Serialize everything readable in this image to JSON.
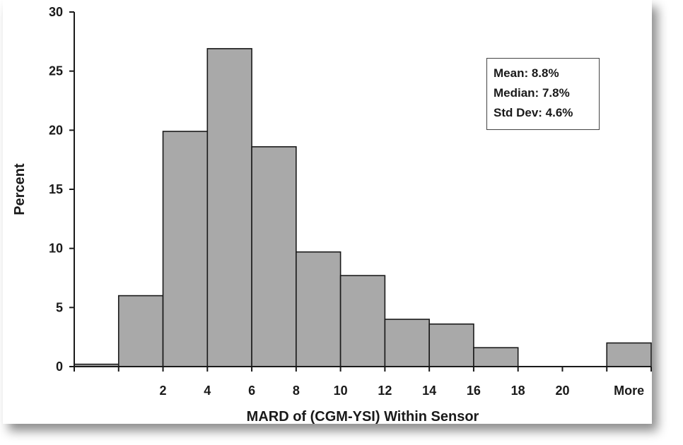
{
  "chart_data": {
    "type": "bar",
    "title": "",
    "xlabel": "MARD of (CGM-YSI) Within Sensor",
    "ylabel": "Percent",
    "ylim": [
      0,
      30
    ],
    "yticks": [
      0,
      5,
      10,
      15,
      20,
      25,
      30
    ],
    "categories": [
      "",
      "2",
      "4",
      "6",
      "8",
      "10",
      "12",
      "14",
      "16",
      "18",
      "20",
      "",
      "More"
    ],
    "values": [
      0.2,
      6.0,
      19.9,
      26.9,
      18.6,
      9.7,
      7.7,
      4.0,
      3.6,
      1.6,
      0.0,
      0.0,
      2.0
    ],
    "bar_color": "#a9a9a9",
    "grid": false,
    "legend": "none",
    "annotation": [
      "Mean: 8.8%",
      "Median: 7.8%",
      "Std Dev: 4.6%"
    ]
  }
}
